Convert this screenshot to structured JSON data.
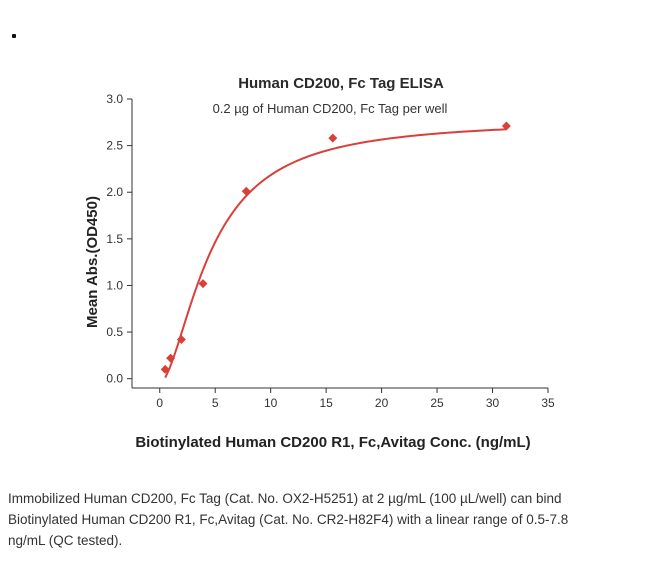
{
  "chart_data": {
    "type": "scatter",
    "title": "Human CD200, Fc Tag ELISA",
    "subtitle": "0.2 µg of Human CD200, Fc Tag per well",
    "xlabel": "Biotinylated Human CD200 R1, Fc,Avitag Conc. (ng/mL)",
    "ylabel": "Mean Abs.(OD450)",
    "xlim": [
      -2.5,
      35
    ],
    "ylim": [
      -0.1,
      3.0
    ],
    "xticks": [
      0,
      5,
      10,
      15,
      20,
      25,
      30,
      35
    ],
    "yticks": [
      0.0,
      0.5,
      1.0,
      1.5,
      2.0,
      2.5,
      3.0
    ],
    "grid": false,
    "series": [
      {
        "marker_color": "#d9403a",
        "x": [
          0.49,
          0.98,
          1.95,
          3.9,
          7.8,
          15.6,
          31.25
        ],
        "y": [
          0.1,
          0.22,
          0.42,
          1.02,
          2.01,
          2.58,
          2.71
        ]
      }
    ],
    "fit_curve": {
      "color": "#d9403a",
      "model": "4PL",
      "bottom": -0.05,
      "top": 2.78,
      "ec50": 4.6,
      "hill": 1.7
    }
  },
  "caption": {
    "lines": [
      "Immobilized Human CD200, Fc Tag (Cat. No. OX2-H5251) at 2 µg/mL (100 µL/well) can bind",
      "Biotinylated Human CD200 R1, Fc,Avitag (Cat. No. CR2-H82F4) with a linear range of 0.5-7.8",
      "ng/mL (QC tested)."
    ]
  }
}
